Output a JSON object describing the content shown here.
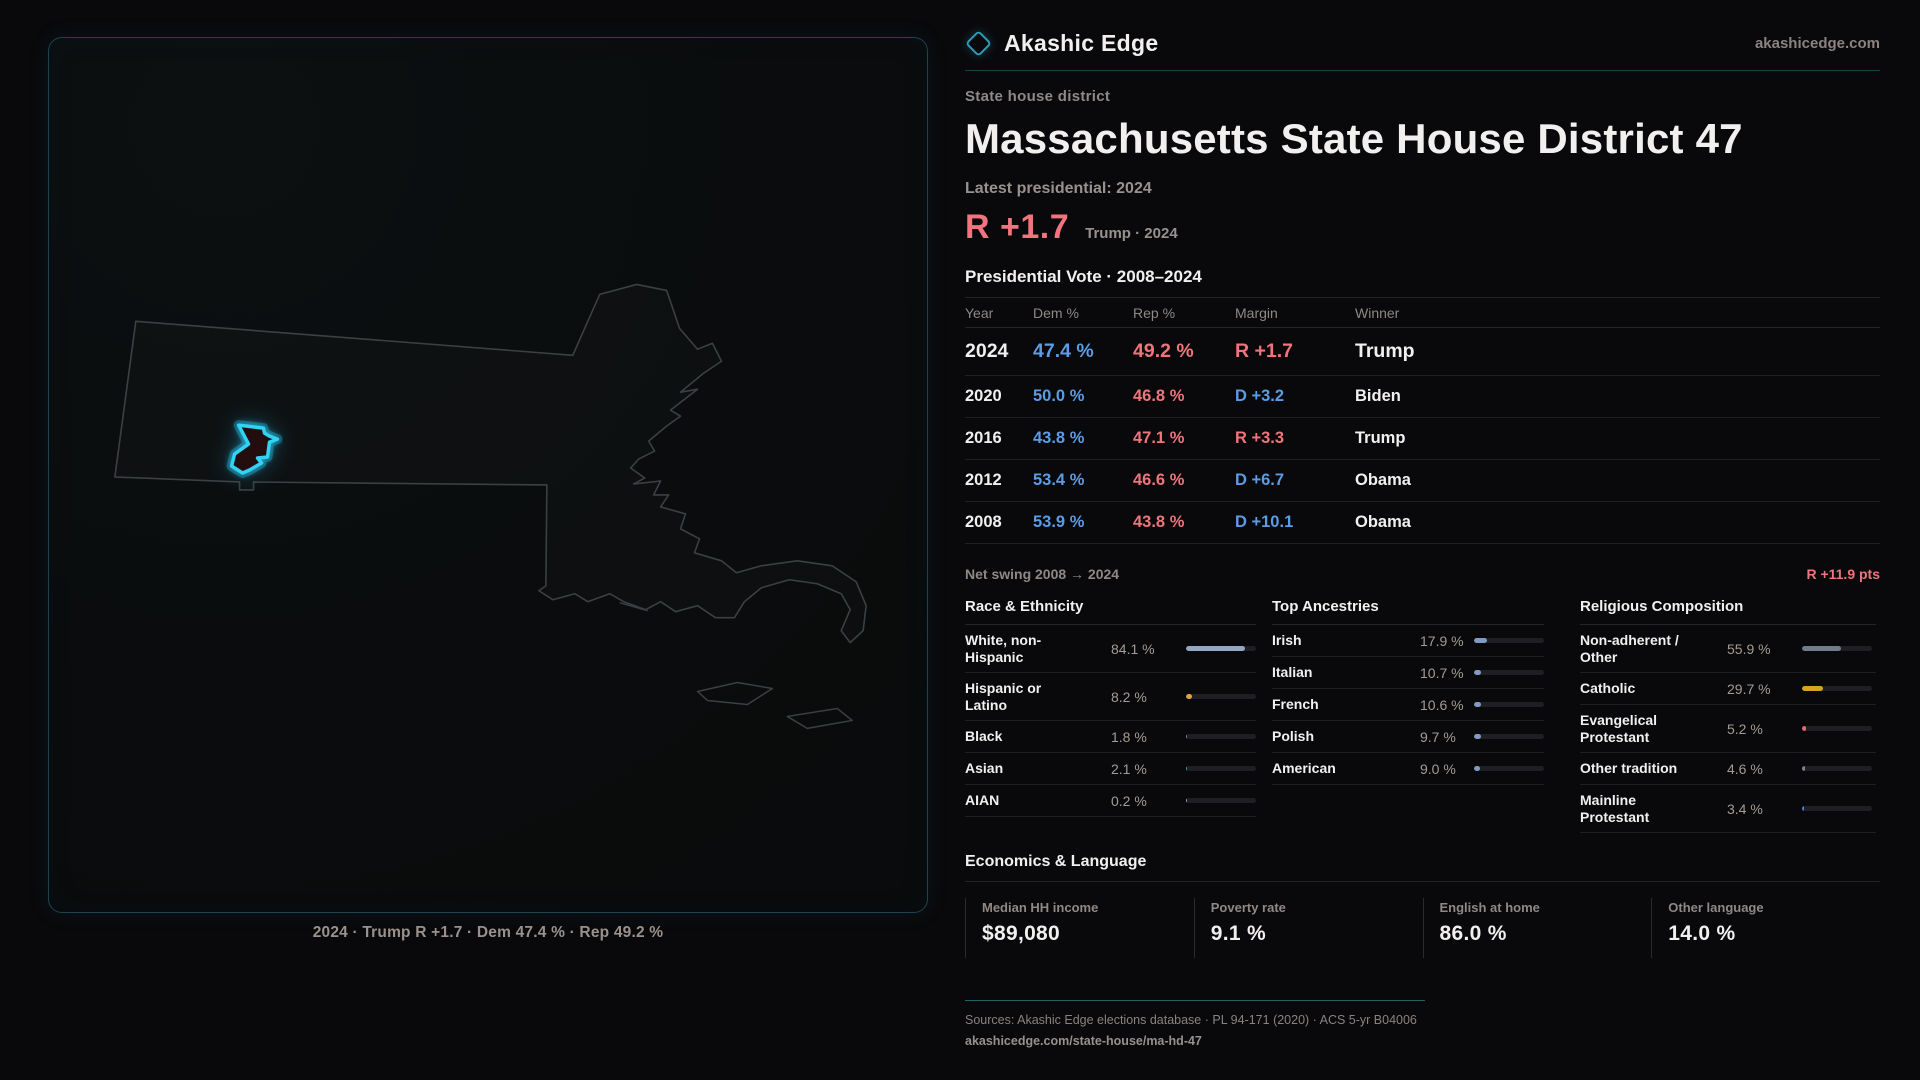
{
  "brand": {
    "name": "Akashic Edge",
    "site": "akashicedge.com",
    "accent": "#2e9ab8"
  },
  "header": {
    "kicker": "State house district",
    "title": "Massachusetts State House District 47",
    "latest_label": "Latest presidential: 2024",
    "headline_margin": "R +1.7",
    "headline_context": "Trump · 2024"
  },
  "map": {
    "caption": "2024 · Trump R +1.7 · Dem 47.4 % · Rep 49.2 %"
  },
  "vote_table": {
    "title": "Presidential Vote · 2008–2024",
    "columns": {
      "year": "Year",
      "dem": "Dem %",
      "rep": "Rep %",
      "margin": "Margin",
      "winner": "Winner"
    },
    "rows": [
      {
        "year": "2024",
        "dem": "47.4 %",
        "rep": "49.2 %",
        "margin": "R +1.7",
        "margin_party": "R",
        "winner": "Trump"
      },
      {
        "year": "2020",
        "dem": "50.0 %",
        "rep": "46.8 %",
        "margin": "D +3.2",
        "margin_party": "D",
        "winner": "Biden"
      },
      {
        "year": "2016",
        "dem": "43.8 %",
        "rep": "47.1 %",
        "margin": "R +3.3",
        "margin_party": "R",
        "winner": "Trump"
      },
      {
        "year": "2012",
        "dem": "53.4 %",
        "rep": "46.6 %",
        "margin": "D +6.7",
        "margin_party": "D",
        "winner": "Obama"
      },
      {
        "year": "2008",
        "dem": "53.9 %",
        "rep": "43.8 %",
        "margin": "D +10.1",
        "margin_party": "D",
        "winner": "Obama"
      }
    ],
    "net_swing_label": "Net swing 2008 → 2024",
    "net_swing_value": "R +11.9 pts"
  },
  "demographics": {
    "race": {
      "title": "Race & Ethnicity",
      "rows": [
        {
          "label": "White, non-Hispanic",
          "value": "84.1 %",
          "pct": 84.1,
          "color": "#93a7c2"
        },
        {
          "label": "Hispanic or Latino",
          "value": "8.2 %",
          "pct": 8.2,
          "color": "#e2a33c"
        },
        {
          "label": "Black",
          "value": "1.8 %",
          "pct": 1.8,
          "color": "#8678d8"
        },
        {
          "label": "Asian",
          "value": "2.1 %",
          "pct": 2.1,
          "color": "#3aa98c"
        },
        {
          "label": "AIAN",
          "value": "0.2 %",
          "pct": 0.2,
          "color": "#9aa2ac"
        }
      ]
    },
    "ancestries": {
      "title": "Top Ancestries",
      "rows": [
        {
          "label": "Irish",
          "value": "17.9 %",
          "pct": 17.9,
          "color": "#7e9cc4"
        },
        {
          "label": "Italian",
          "value": "10.7 %",
          "pct": 10.7,
          "color": "#7e9cc4"
        },
        {
          "label": "French",
          "value": "10.6 %",
          "pct": 10.6,
          "color": "#7e9cc4"
        },
        {
          "label": "Polish",
          "value": "9.7 %",
          "pct": 9.7,
          "color": "#7e9cc4"
        },
        {
          "label": "American",
          "value": "9.0 %",
          "pct": 9.0,
          "color": "#7e9cc4"
        }
      ]
    },
    "religion": {
      "title": "Religious Composition",
      "rows": [
        {
          "label": "Non-adherent / Other",
          "value": "55.9 %",
          "pct": 55.9,
          "color": "#707c8c"
        },
        {
          "label": "Catholic",
          "value": "29.7 %",
          "pct": 29.7,
          "color": "#d6a41f"
        },
        {
          "label": "Evangelical Protestant",
          "value": "5.2 %",
          "pct": 5.2,
          "color": "#e06c6c"
        },
        {
          "label": "Other tradition",
          "value": "4.6 %",
          "pct": 4.6,
          "color": "#7d858f"
        },
        {
          "label": "Mainline Protestant",
          "value": "3.4 %",
          "pct": 3.4,
          "color": "#4d82d6"
        }
      ]
    }
  },
  "economics": {
    "title": "Economics & Language",
    "stats": [
      {
        "label": "Median HH income",
        "value": "$89,080"
      },
      {
        "label": "Poverty rate",
        "value": "9.1 %"
      },
      {
        "label": "English at home",
        "value": "86.0 %"
      },
      {
        "label": "Other language",
        "value": "14.0 %"
      }
    ]
  },
  "footer": {
    "sources": "Sources: Akashic Edge elections database · PL 94-171 (2020) · ACS 5-yr B04006",
    "permalink": "akashicedge.com/state-house/ma-hd-47"
  }
}
